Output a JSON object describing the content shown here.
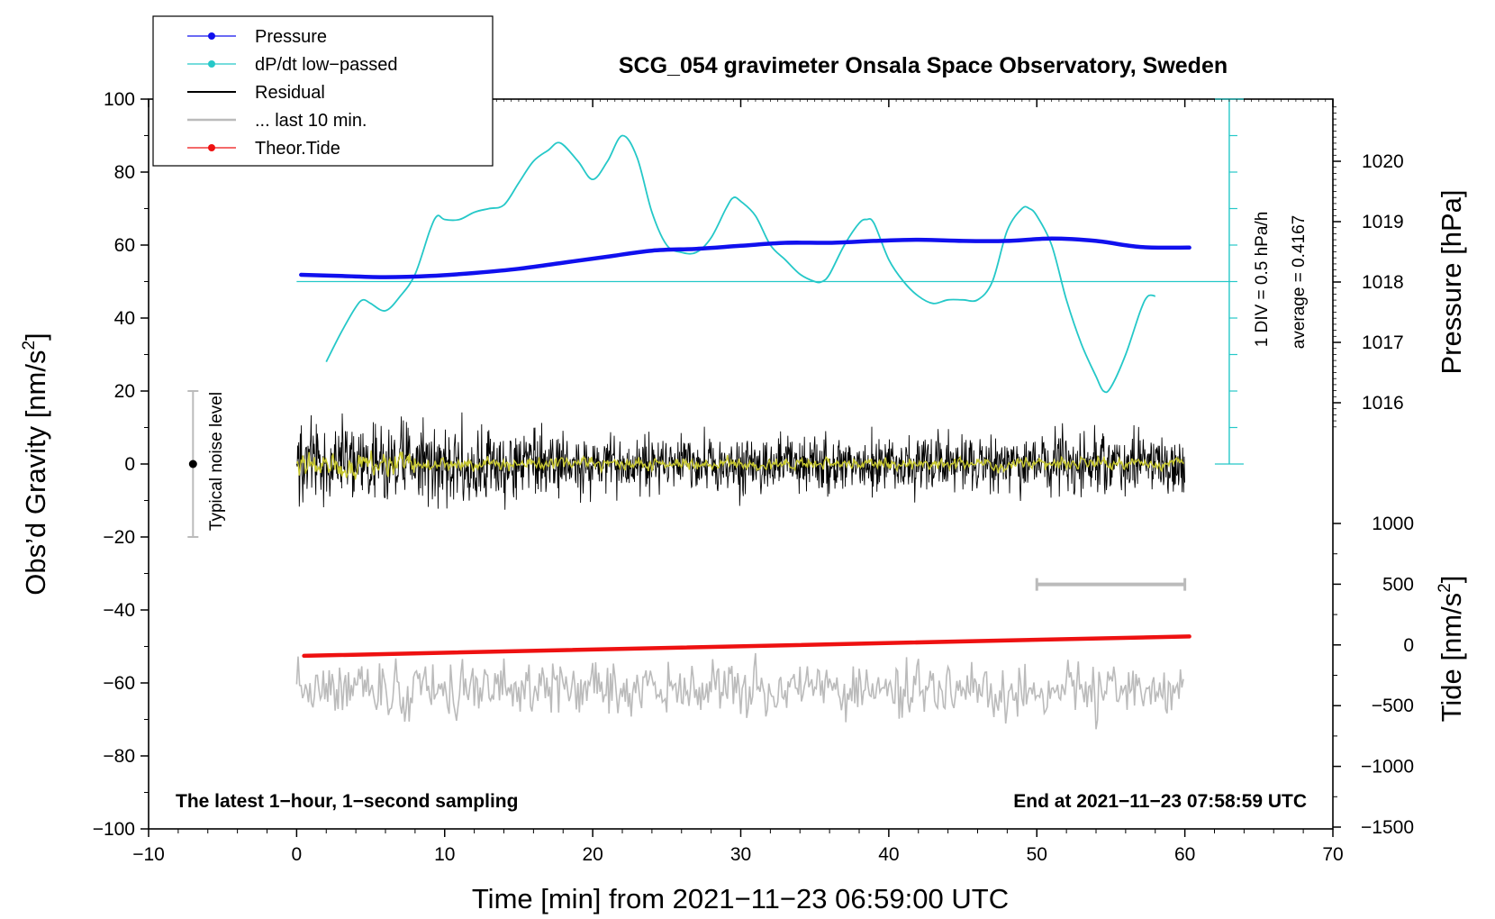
{
  "chart_data": {
    "type": "line",
    "title": "SCG_054 gravimeter Onsala Space Observatory, Sweden",
    "xlabel": "Time [min] from 2021−11−23 06:59:00 UTC",
    "ylabel_left": "Obs’d Gravity [nm/s",
    "ylabel_left_sup": "2",
    "ylabel_left_end": "]",
    "ylabel_right_pressure": "Pressure [hPa]",
    "ylabel_right_tide": "Tide [nm/s",
    "ylabel_right_tide_sup": "2",
    "ylabel_right_tide_end": "]",
    "xlim": [
      -10,
      70
    ],
    "ylim_left": [
      -100,
      100
    ],
    "x_ticks": [
      -10,
      0,
      10,
      20,
      30,
      40,
      50,
      60,
      70
    ],
    "x_tick_labels": [
      "−10",
      "0",
      "10",
      "20",
      "30",
      "40",
      "50",
      "60",
      "70"
    ],
    "y_left_ticks": [
      100,
      80,
      60,
      40,
      20,
      0,
      -20,
      -40,
      -60,
      -80,
      -100
    ],
    "y_left_tick_labels": [
      "100",
      "80",
      "60",
      "40",
      "20",
      "0",
      "−20",
      "−40",
      "−60",
      "−80",
      "−100"
    ],
    "pressure_axis": {
      "ticks": [
        1016,
        1017,
        1018,
        1019,
        1020
      ],
      "tick_labels": [
        "1016",
        "1017",
        "1018",
        "1019",
        "1020"
      ],
      "range": [
        1015,
        1021
      ]
    },
    "tide_axis": {
      "ticks": [
        1000,
        500,
        0,
        -500,
        -1000,
        -1500
      ],
      "tick_labels": [
        "1000",
        "500",
        "0",
        "−500",
        "−1000",
        "−1500"
      ],
      "range": [
        -1500,
        1000
      ]
    },
    "legend": {
      "position": "top-left",
      "entries": [
        {
          "label": "Pressure",
          "color": "#1010ee",
          "marker": true
        },
        {
          "label": "dP/dt low−passed",
          "color": "#25c8c8",
          "marker": true
        },
        {
          "label": "Residual",
          "color": "#000000",
          "marker": false
        },
        {
          "label": "... last 10 min.",
          "color": "#bbbbbb",
          "marker": false
        },
        {
          "label": "Theor.Tide",
          "color": "#ee1111",
          "marker": true
        }
      ]
    },
    "series": [
      {
        "name": "Pressure",
        "axis": "pressure",
        "color": "#1010ee",
        "x": [
          0.3,
          3,
          6,
          9,
          12,
          15,
          18,
          21,
          24,
          27,
          30,
          33,
          36,
          39,
          42,
          45,
          48,
          51,
          54,
          57,
          60.3
        ],
        "values": [
          1018.12,
          1018.1,
          1018.08,
          1018.1,
          1018.15,
          1018.22,
          1018.32,
          1018.42,
          1018.52,
          1018.55,
          1018.6,
          1018.65,
          1018.65,
          1018.68,
          1018.7,
          1018.68,
          1018.68,
          1018.72,
          1018.68,
          1018.58,
          1018.57
        ]
      },
      {
        "name": "dP/dt low-passed",
        "axis": "left",
        "color": "#25c8c8",
        "x": [
          2,
          3,
          4,
          4.5,
          5,
          6,
          7,
          8,
          9,
          9.5,
          10,
          11,
          12,
          13,
          14,
          15,
          16,
          17,
          17.8,
          19,
          20,
          21,
          22,
          23,
          24,
          25,
          26,
          27,
          28,
          29,
          29.5,
          30,
          31,
          32,
          33,
          34,
          35,
          35.5,
          36,
          37,
          38,
          38.5,
          39,
          40,
          41,
          42,
          43,
          44,
          45,
          46,
          47,
          48,
          49,
          49.5,
          50,
          51,
          52,
          53,
          54,
          54.5,
          55,
          56,
          57,
          57.5,
          58
        ],
        "values": [
          28,
          36,
          43,
          45,
          44,
          42,
          46,
          52,
          64,
          68,
          67,
          67,
          69,
          70,
          71,
          77,
          83,
          86,
          88,
          83,
          78,
          83,
          90,
          84,
          69,
          60,
          58,
          58,
          62,
          70,
          73,
          72,
          68,
          60,
          56,
          52,
          50,
          50,
          52,
          60,
          66,
          67,
          66,
          56,
          50,
          46,
          44,
          45,
          45,
          45,
          50,
          64,
          70,
          70,
          68,
          60,
          45,
          33,
          24,
          20,
          21,
          30,
          42,
          46,
          46
        ]
      },
      {
        "name": "Residual",
        "axis": "left",
        "color": "#000000",
        "x_range": [
          0,
          60
        ],
        "amplitude_range": [
          -25,
          25
        ],
        "typical_amplitude": 10
      },
      {
        "name": "Residual (smoothed)",
        "axis": "left",
        "color": "#c9c930",
        "x_range": [
          0,
          60
        ],
        "typical_amplitude": 2
      },
      {
        "name": "... last 10 min.",
        "axis": "left",
        "color": "#bbbbbb",
        "x_range": [
          0,
          60
        ],
        "center": -62,
        "amplitude_range": [
          -74,
          -45
        ]
      },
      {
        "name": "Theor.Tide",
        "axis": "tide",
        "color": "#ee1111",
        "x": [
          0.5,
          60.3
        ],
        "values": [
          -90,
          70
        ]
      }
    ],
    "annotations": {
      "dpdt_reference_line": {
        "y": 50,
        "x_range": [
          0,
          63
        ],
        "color": "#25c8c8"
      },
      "dpdt_scale_bar": {
        "x": 63,
        "y_range": [
          0,
          100
        ],
        "divisions": 10
      },
      "div_label": "1 DIV = 0.5 hPa/h",
      "average_label": "average = 0.4167",
      "noise_bar": {
        "x": -7,
        "y_range": [
          -20,
          20
        ],
        "center": 0,
        "label": "Typical noise level"
      },
      "last10_bar": {
        "x_range": [
          50,
          60
        ],
        "y": -33
      },
      "footnote_left": "The latest 1−hour, 1−second sampling",
      "footnote_right": "End at 2021−11−23 07:58:59 UTC"
    }
  }
}
